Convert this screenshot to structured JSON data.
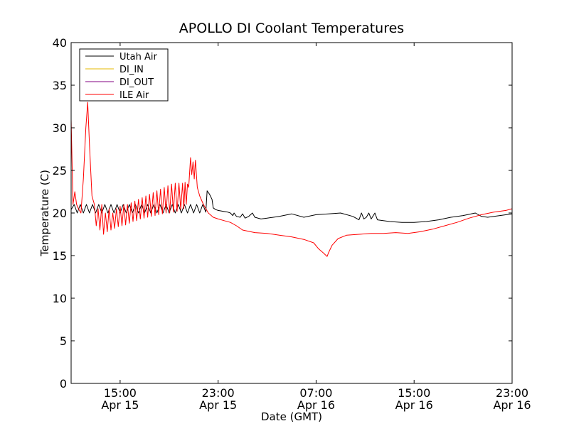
{
  "chart_data": {
    "type": "line",
    "title": "APOLLO DI Coolant Temperatures",
    "xlabel": "Date (GMT)",
    "ylabel": "Temperature (C)",
    "xlim": [
      11.0,
      47.0
    ],
    "ylim": [
      0,
      40
    ],
    "yticks": [
      0,
      5,
      10,
      15,
      20,
      25,
      30,
      35,
      40
    ],
    "xticks": [
      {
        "x": 15,
        "time": "15:00",
        "date": "Apr 15"
      },
      {
        "x": 23,
        "time": "23:00",
        "date": "Apr 15"
      },
      {
        "x": 31,
        "time": "07:00",
        "date": "Apr 16"
      },
      {
        "x": 39,
        "time": "15:00",
        "date": "Apr 16"
      },
      {
        "x": 47,
        "time": "23:00",
        "date": "Apr 16"
      }
    ],
    "legend": {
      "location": "top-left",
      "entries": [
        {
          "name": "Utah Air",
          "color": "#000000"
        },
        {
          "name": "DI_IN",
          "color": "#e6b800"
        },
        {
          "name": "DI_OUT",
          "color": "#800080"
        },
        {
          "name": "ILE Air",
          "color": "#ff0000"
        }
      ]
    },
    "series": [
      {
        "name": "Utah Air",
        "color": "#000000",
        "points": [
          [
            11.0,
            20.4
          ],
          [
            11.25,
            21.0
          ],
          [
            11.5,
            20.0
          ],
          [
            11.75,
            21.0
          ],
          [
            12.0,
            20.0
          ],
          [
            12.25,
            21.0
          ],
          [
            12.5,
            20.0
          ],
          [
            12.75,
            21.0
          ],
          [
            13.0,
            20.0
          ],
          [
            13.25,
            21.0
          ],
          [
            13.5,
            20.0
          ],
          [
            13.75,
            21.0
          ],
          [
            14.0,
            20.0
          ],
          [
            14.25,
            21.0
          ],
          [
            14.5,
            20.0
          ],
          [
            14.75,
            21.0
          ],
          [
            15.0,
            20.0
          ],
          [
            15.25,
            21.0
          ],
          [
            15.5,
            20.0
          ],
          [
            15.75,
            21.0
          ],
          [
            16.0,
            20.0
          ],
          [
            16.25,
            21.0
          ],
          [
            16.5,
            20.0
          ],
          [
            16.75,
            21.0
          ],
          [
            17.0,
            20.0
          ],
          [
            17.25,
            21.0
          ],
          [
            17.5,
            20.0
          ],
          [
            17.75,
            21.0
          ],
          [
            18.0,
            20.0
          ],
          [
            18.25,
            21.0
          ],
          [
            18.5,
            20.0
          ],
          [
            18.75,
            21.0
          ],
          [
            19.0,
            20.0
          ],
          [
            19.25,
            21.0
          ],
          [
            19.5,
            20.0
          ],
          [
            19.75,
            21.0
          ],
          [
            20.0,
            20.0
          ],
          [
            20.25,
            21.0
          ],
          [
            20.5,
            20.0
          ],
          [
            20.75,
            21.0
          ],
          [
            21.0,
            20.0
          ],
          [
            21.25,
            21.0
          ],
          [
            21.5,
            20.0
          ],
          [
            21.75,
            21.0
          ],
          [
            22.0,
            20.1
          ],
          [
            22.1,
            22.6
          ],
          [
            22.3,
            22.2
          ],
          [
            22.5,
            21.6
          ],
          [
            22.6,
            20.6
          ],
          [
            22.8,
            20.4
          ],
          [
            23.0,
            20.3
          ],
          [
            23.4,
            20.2
          ],
          [
            23.8,
            20.1
          ],
          [
            24.0,
            20.0
          ],
          [
            24.2,
            19.7
          ],
          [
            24.3,
            20.0
          ],
          [
            24.5,
            19.6
          ],
          [
            24.8,
            19.5
          ],
          [
            25.0,
            19.9
          ],
          [
            25.2,
            19.4
          ],
          [
            25.5,
            19.6
          ],
          [
            25.8,
            20.0
          ],
          [
            26.0,
            19.5
          ],
          [
            26.5,
            19.3
          ],
          [
            27.0,
            19.4
          ],
          [
            28.0,
            19.6
          ],
          [
            29.0,
            19.9
          ],
          [
            30.0,
            19.5
          ],
          [
            31.0,
            19.8
          ],
          [
            32.0,
            19.9
          ],
          [
            33.0,
            20.0
          ],
          [
            34.0,
            19.6
          ],
          [
            34.5,
            19.2
          ],
          [
            34.7,
            20.0
          ],
          [
            34.9,
            19.3
          ],
          [
            35.1,
            19.5
          ],
          [
            35.3,
            20.0
          ],
          [
            35.5,
            19.3
          ],
          [
            35.8,
            20.0
          ],
          [
            36.0,
            19.2
          ],
          [
            37.0,
            19.0
          ],
          [
            38.0,
            18.9
          ],
          [
            39.0,
            18.9
          ],
          [
            40.0,
            19.0
          ],
          [
            41.0,
            19.2
          ],
          [
            42.0,
            19.5
          ],
          [
            43.0,
            19.7
          ],
          [
            44.0,
            20.0
          ],
          [
            44.5,
            19.6
          ],
          [
            45.0,
            19.5
          ],
          [
            46.0,
            19.7
          ],
          [
            47.0,
            19.9
          ]
        ]
      },
      {
        "name": "DI_IN",
        "color": "#e6b800",
        "points": []
      },
      {
        "name": "DI_OUT",
        "color": "#800080",
        "points": []
      },
      {
        "name": "ILE Air",
        "color": "#ff0000",
        "points": [
          [
            11.0,
            31.0
          ],
          [
            11.15,
            21.0
          ],
          [
            11.3,
            22.5
          ],
          [
            11.45,
            21.0
          ],
          [
            11.6,
            20.5
          ],
          [
            11.8,
            20.0
          ],
          [
            12.0,
            24.0
          ],
          [
            12.2,
            30.0
          ],
          [
            12.35,
            33.0
          ],
          [
            12.5,
            28.0
          ],
          [
            12.7,
            22.0
          ],
          [
            12.9,
            21.0
          ],
          [
            13.05,
            18.5
          ],
          [
            13.2,
            20.5
          ],
          [
            13.35,
            18.0
          ],
          [
            13.5,
            21.0
          ],
          [
            13.65,
            17.5
          ],
          [
            13.8,
            20.0
          ],
          [
            13.95,
            17.8
          ],
          [
            14.1,
            20.5
          ],
          [
            14.25,
            18.0
          ],
          [
            14.4,
            20.0
          ],
          [
            14.55,
            18.2
          ],
          [
            14.7,
            20.5
          ],
          [
            14.85,
            18.4
          ],
          [
            15.0,
            20.8
          ],
          [
            15.15,
            18.5
          ],
          [
            15.3,
            21.0
          ],
          [
            15.45,
            18.6
          ],
          [
            15.6,
            21.0
          ],
          [
            15.75,
            18.8
          ],
          [
            15.9,
            21.2
          ],
          [
            16.05,
            19.0
          ],
          [
            16.2,
            21.4
          ],
          [
            16.35,
            19.1
          ],
          [
            16.5,
            21.6
          ],
          [
            16.65,
            19.3
          ],
          [
            16.8,
            21.8
          ],
          [
            16.95,
            19.4
          ],
          [
            17.1,
            22.0
          ],
          [
            17.25,
            19.5
          ],
          [
            17.4,
            22.2
          ],
          [
            17.55,
            19.6
          ],
          [
            17.7,
            22.4
          ],
          [
            17.85,
            19.7
          ],
          [
            18.0,
            22.6
          ],
          [
            18.15,
            19.8
          ],
          [
            18.3,
            22.8
          ],
          [
            18.45,
            19.9
          ],
          [
            18.6,
            23.0
          ],
          [
            18.75,
            20.0
          ],
          [
            18.9,
            23.2
          ],
          [
            19.05,
            20.0
          ],
          [
            19.2,
            23.4
          ],
          [
            19.35,
            20.1
          ],
          [
            19.5,
            23.5
          ],
          [
            19.65,
            20.2
          ],
          [
            19.8,
            23.5
          ],
          [
            19.95,
            20.4
          ],
          [
            20.1,
            23.5
          ],
          [
            20.2,
            20.5
          ],
          [
            20.3,
            23.6
          ],
          [
            20.4,
            21.0
          ],
          [
            20.5,
            23.4
          ],
          [
            20.6,
            23.0
          ],
          [
            20.75,
            26.5
          ],
          [
            20.85,
            24.5
          ],
          [
            20.95,
            26.0
          ],
          [
            21.05,
            24.0
          ],
          [
            21.15,
            26.2
          ],
          [
            21.3,
            23.0
          ],
          [
            21.5,
            22.0
          ],
          [
            21.8,
            21.0
          ],
          [
            22.2,
            20.0
          ],
          [
            22.6,
            19.5
          ],
          [
            23.0,
            19.3
          ],
          [
            23.5,
            19.1
          ],
          [
            24.0,
            18.9
          ],
          [
            24.5,
            18.5
          ],
          [
            25.0,
            18.0
          ],
          [
            26.0,
            17.7
          ],
          [
            27.0,
            17.6
          ],
          [
            28.0,
            17.4
          ],
          [
            29.0,
            17.2
          ],
          [
            30.0,
            16.9
          ],
          [
            30.8,
            16.5
          ],
          [
            31.2,
            15.8
          ],
          [
            31.6,
            15.3
          ],
          [
            31.9,
            14.9
          ],
          [
            32.0,
            15.3
          ],
          [
            32.3,
            16.2
          ],
          [
            32.8,
            17.0
          ],
          [
            33.5,
            17.4
          ],
          [
            34.5,
            17.5
          ],
          [
            35.5,
            17.6
          ],
          [
            36.5,
            17.6
          ],
          [
            37.5,
            17.7
          ],
          [
            38.5,
            17.6
          ],
          [
            39.5,
            17.8
          ],
          [
            40.5,
            18.1
          ],
          [
            41.5,
            18.5
          ],
          [
            42.5,
            18.9
          ],
          [
            43.5,
            19.4
          ],
          [
            44.5,
            19.8
          ],
          [
            45.5,
            20.1
          ],
          [
            46.5,
            20.3
          ],
          [
            47.0,
            20.5
          ]
        ]
      }
    ]
  }
}
